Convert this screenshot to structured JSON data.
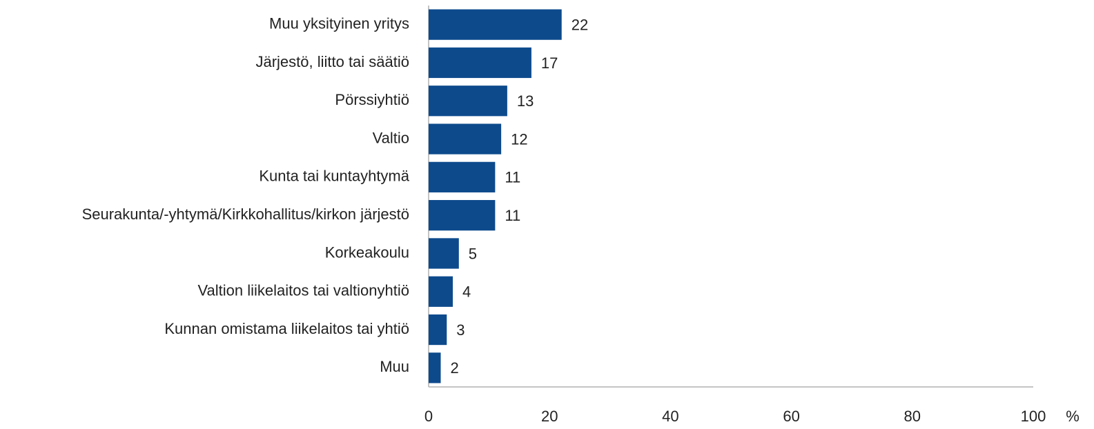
{
  "chart_data": {
    "type": "bar",
    "orientation": "horizontal",
    "categories": [
      "Muu yksityinen yritys",
      "Järjestö, liitto tai säätiö",
      "Pörssiyhtiö",
      "Valtio",
      "Kunta tai kuntayhtymä",
      "Seurakunta/-yhtymä/Kirkkohallitus/kirkon järjestö",
      "Korkeakoulu",
      "Valtion liikelaitos tai valtionyhtiö",
      "Kunnan omistama liikelaitos tai yhtiö",
      "Muu"
    ],
    "values": [
      22,
      17,
      13,
      12,
      11,
      11,
      5,
      4,
      3,
      2
    ],
    "color": "#0d4a8c",
    "xlabel": "%",
    "xlim": [
      0,
      100
    ],
    "xticks": [
      0,
      20,
      40,
      60,
      80,
      100
    ],
    "grid": false
  }
}
